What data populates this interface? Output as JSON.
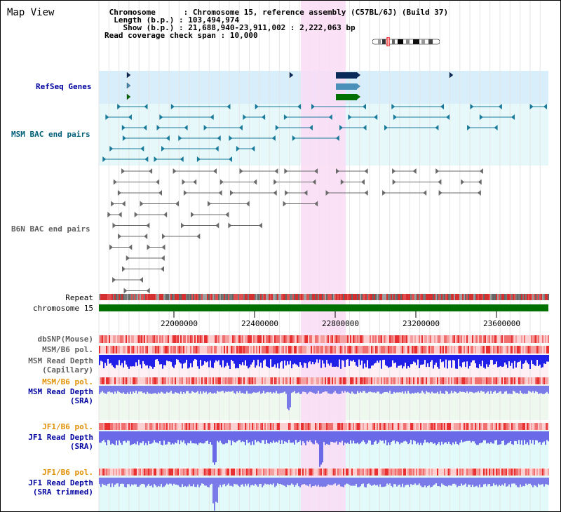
{
  "page": {
    "title": "Map View"
  },
  "info": {
    "chromosome_label": "Chromosome",
    "chromosome_value": "Chromosome 15, reference assembly (C57BL/6J) (Build 37)",
    "length_label": "Length (b.p.)",
    "length_value": "103,494,974",
    "show_label": "Show (b.p.)",
    "show_value": "21,688,940-23,911,002 : 2,222,063 bp",
    "coverage_label": "Read coverage check span",
    "coverage_value": "10,000"
  },
  "tracks": {
    "refseq": "RefSeq Genes",
    "msm_bac": "MSM BAC end pairs",
    "b6n_bac": "B6N BAC end pairs",
    "repeat": "Repeat",
    "chromosome": "chromosome 15",
    "dbsnp": "dbSNP(Mouse)",
    "msm_b6_pol_1": "MSM/B6 pol.",
    "msm_depth_cap_1": "MSM Read Depth",
    "msm_depth_cap_2": "(Capillary)",
    "msm_b6_pol_2": "MSM/B6 pol.",
    "msm_depth_sra_1": "MSM Read Depth",
    "msm_depth_sra_2": "(SRA)",
    "jf1_b6_pol_1": "JF1/B6 pol.",
    "jf1_depth_sra_1": "JF1 Read Depth",
    "jf1_depth_sra_2": "(SRA)",
    "jf1_b6_pol_2": "JF1/B6 pol.",
    "jf1_depth_trim_1": "JF1 Read Depth",
    "jf1_depth_trim_2": "(SRA trimmed)"
  },
  "axis": {
    "ticks": [
      "22000000",
      "22400000",
      "22800000",
      "23200000",
      "23600000"
    ]
  },
  "colors": {
    "highlight": "#fadcf5",
    "refseq_bg": "#d8eefa",
    "msm_bg": "#e6f8fa",
    "chrom": "#007000",
    "label_blue": "#0000a0",
    "label_teal": "#00607a",
    "label_orange": "#e09000"
  }
}
